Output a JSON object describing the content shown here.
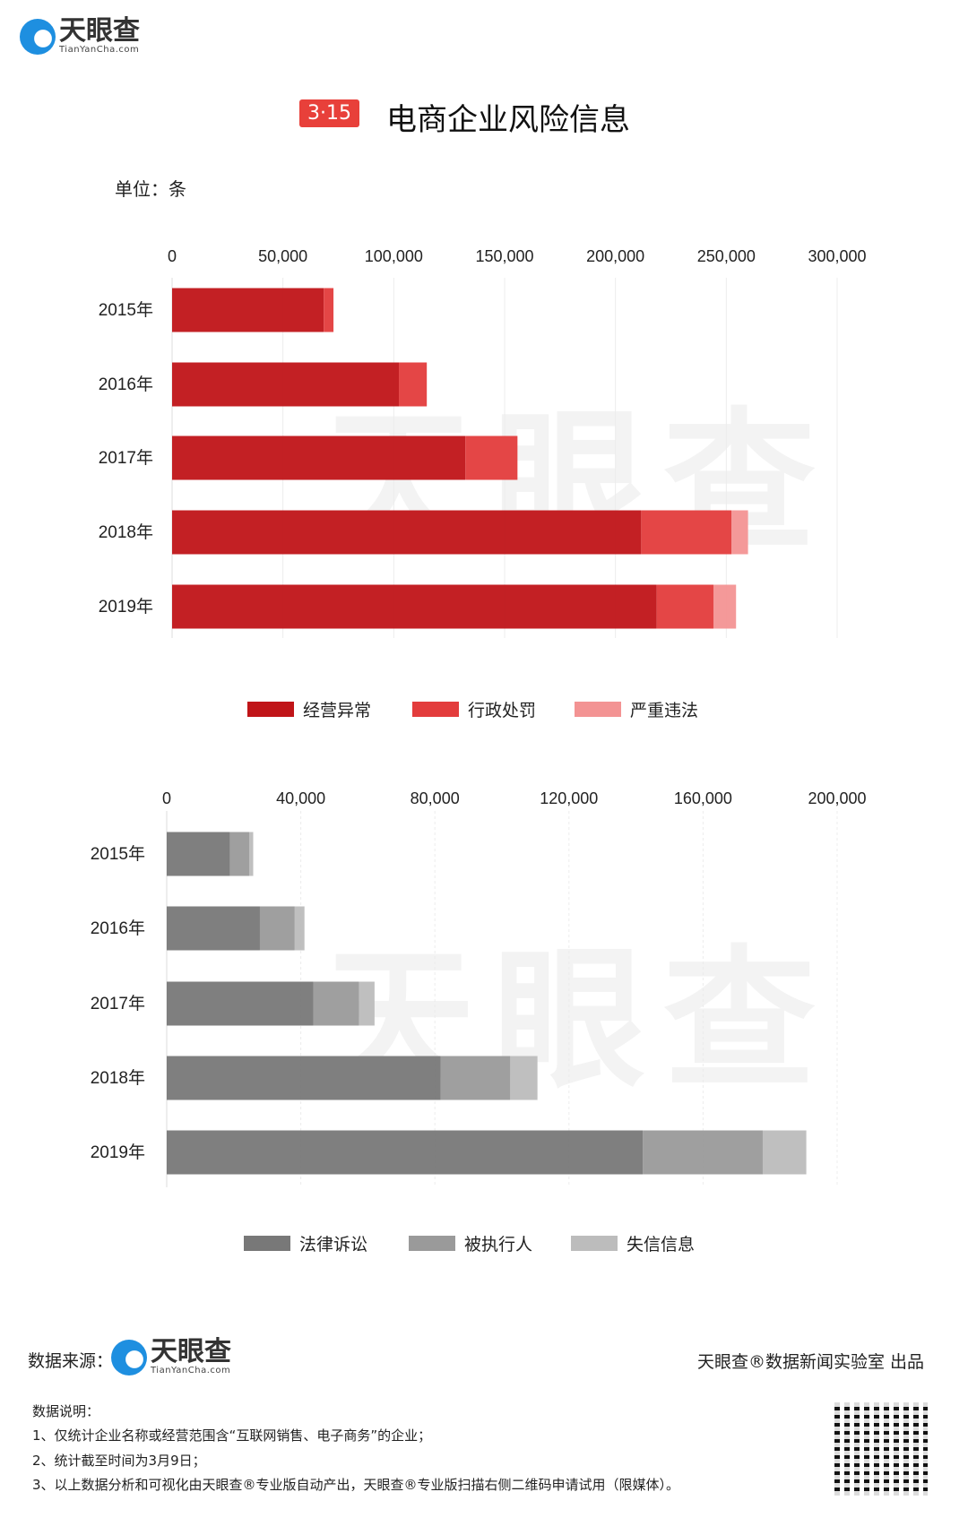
{
  "header": {
    "logo_text": "天眼查",
    "logo_sub": "TianYanCha.com",
    "badge": "3·15",
    "title": "电商企业风险信息",
    "unit": "单位：条"
  },
  "watermark": "天眼查",
  "colors": {
    "red_dark": "#c01418",
    "red_mid": "#e33c3c",
    "red_light": "#f39393",
    "gray_dark": "#787878",
    "gray_mid": "#9a9a9a",
    "gray_light": "#bcbcbc",
    "badge": "#e8403a",
    "logo_blue": "#1e8fe0"
  },
  "chart_data": [
    {
      "type": "bar",
      "orientation": "horizontal",
      "stacked": true,
      "categories": [
        "2015年",
        "2016年",
        "2017年",
        "2018年",
        "2019年"
      ],
      "xlim": [
        0,
        300000
      ],
      "xticks": [
        "0",
        "50,000",
        "100,000",
        "150,000",
        "200,000",
        "250,000",
        "300,000"
      ],
      "xtick_values": [
        0,
        50000,
        100000,
        150000,
        200000,
        250000,
        300000
      ],
      "grid": true,
      "legend_position": "bottom",
      "series": [
        {
          "name": "经营异常",
          "values": [
            68400,
            102300,
            132300,
            211600,
            218600
          ]
        },
        {
          "name": "行政处罚",
          "values": [
            4400,
            12600,
            23500,
            40700,
            25600
          ]
        },
        {
          "name": "严重违法",
          "values": [
            0,
            0,
            0,
            7500,
            10200
          ]
        }
      ]
    },
    {
      "type": "bar",
      "orientation": "horizontal",
      "stacked": true,
      "categories": [
        "2015年",
        "2016年",
        "2017年",
        "2018年",
        "2019年"
      ],
      "xlim": [
        0,
        200000
      ],
      "xticks": [
        "0",
        "40,000",
        "80,000",
        "120,000",
        "160,000",
        "200,000"
      ],
      "xtick_values": [
        0,
        40000,
        80000,
        120000,
        160000,
        200000
      ],
      "grid": true,
      "legend_position": "bottom",
      "series": [
        {
          "name": "法律诉讼",
          "values": [
            18900,
            27800,
            43800,
            81700,
            142000
          ]
        },
        {
          "name": "被执行人",
          "values": [
            5700,
            10400,
            13600,
            20800,
            35800
          ]
        },
        {
          "name": "失信信息",
          "values": [
            1200,
            2900,
            4600,
            8100,
            13000
          ]
        }
      ]
    }
  ],
  "footer": {
    "source_label": "数据来源：",
    "source_logo_text": "天眼查",
    "source_logo_sub": "TianYanCha.com",
    "credit": "天眼查®数据新闻实验室 出品",
    "notes_title": "数据说明：",
    "notes": [
      "1、仅统计企业名称或经营范围含“互联网销售、电子商务”的企业；",
      "2、统计截至时间为3月9日；",
      "3、以上数据分析和可视化由天眼查®专业版自动产出，天眼查®专业版扫描右侧二维码申请试用（限媒体）。"
    ]
  }
}
